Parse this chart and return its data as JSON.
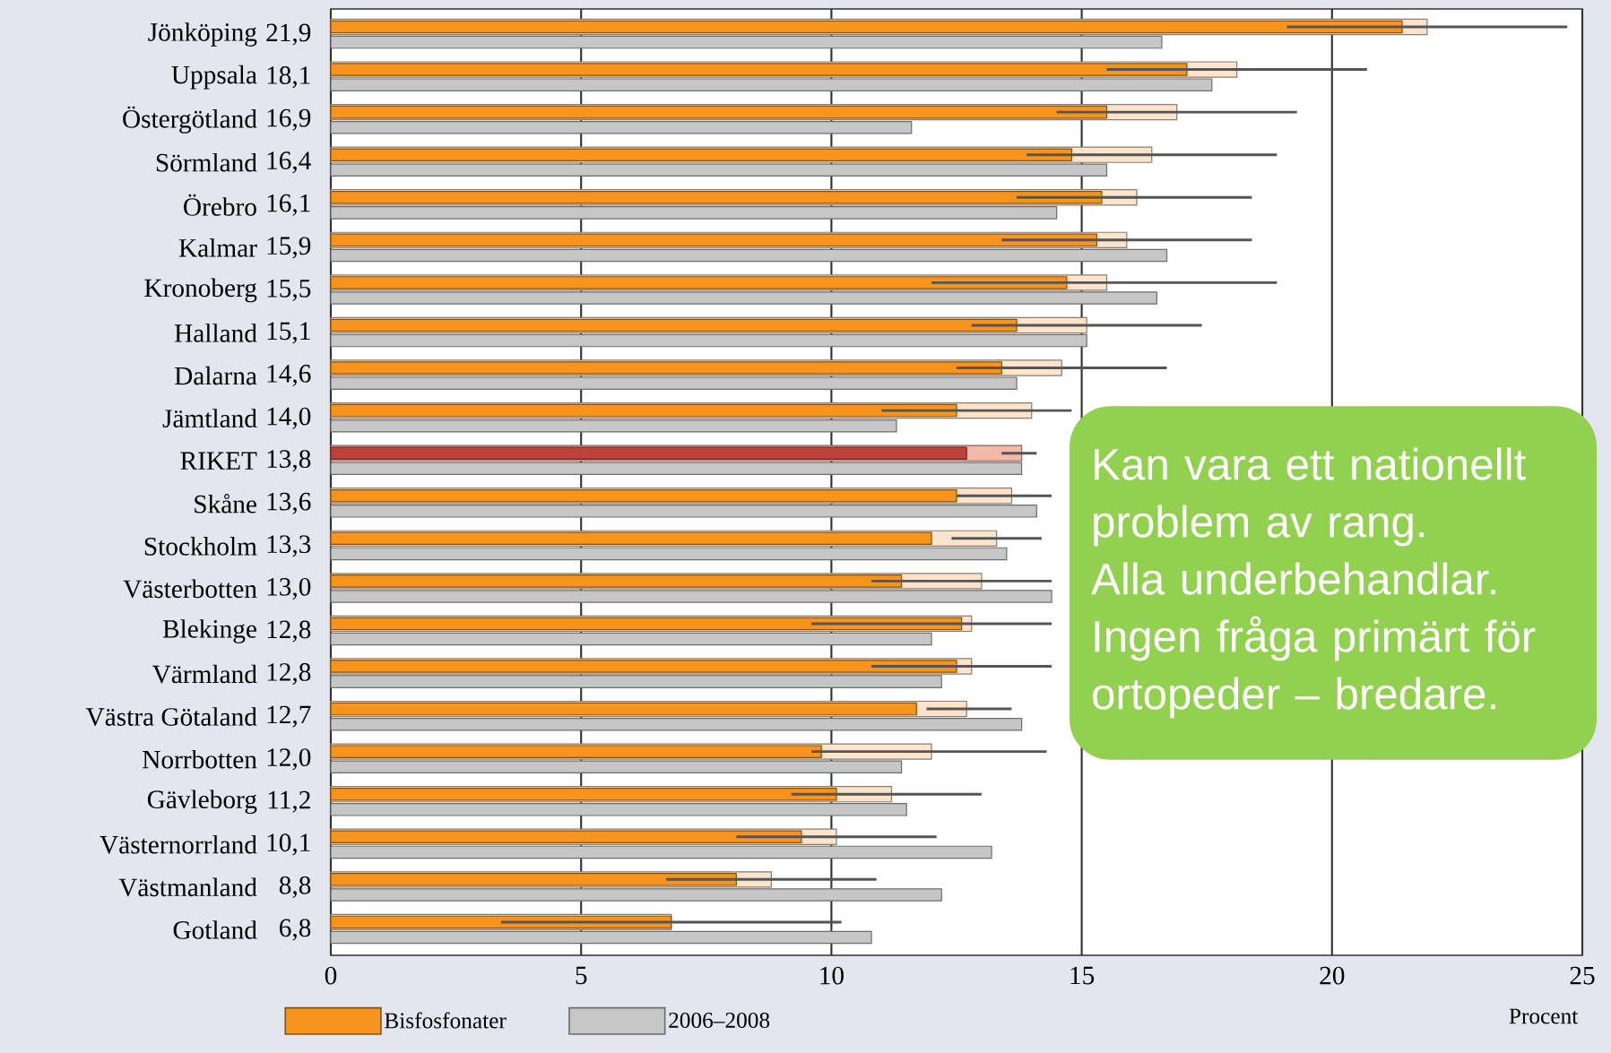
{
  "chart_data": {
    "type": "bar",
    "orientation": "horizontal",
    "categories": [
      "Jönköping",
      "Uppsala",
      "Östergötland",
      "Sörmland",
      "Örebro",
      "Kalmar",
      "Kronoberg",
      "Halland",
      "Dalarna",
      "Jämtland",
      "RIKET",
      "Skåne",
      "Stockholm",
      "Västerbotten",
      "Blekinge",
      "Värmland",
      "Västra Götaland",
      "Norrbotten",
      "Gävleborg",
      "Västernorrland",
      "Västmanland",
      "Gotland"
    ],
    "series": [
      {
        "colors": [
          "#fbe3cc",
          "#fbe3cc",
          "#fbe3cc",
          "#fbe3cc",
          "#fbe3cc",
          "#fbe3cc",
          "#fbe3cc",
          "#fbe3cc",
          "#fbe3cc",
          "#fbe3cc",
          "#f2b9a8",
          "#fbe3cc",
          "#fbe3cc",
          "#fbe3cc",
          "#fbe3cc",
          "#fbe3cc",
          "#fbe3cc",
          "#fbe3cc",
          "#fbe3cc",
          "#fbe3cc",
          "#fbe3cc",
          "#fbe3cc"
        ],
        "values": [
          21.9,
          18.1,
          16.9,
          16.4,
          16.1,
          15.9,
          15.5,
          15.1,
          14.6,
          14.0,
          13.8,
          13.6,
          13.3,
          13.0,
          12.8,
          12.8,
          12.7,
          12.0,
          11.2,
          10.1,
          8.8,
          6.8
        ],
        "value_labels": [
          "21,9",
          "18,1",
          "16,9",
          "16,4",
          "16,1",
          "15,9",
          "15,5",
          "15,1",
          "14,6",
          "14,0",
          "13,8",
          "13,6",
          "13,3",
          "13,0",
          "12,8",
          "12,8",
          "12,7",
          "12,0",
          "11,2",
          "10,1",
          "8,8",
          "6,8"
        ],
        "errors": [
          [
            19.1,
            24.7
          ],
          [
            15.5,
            20.7
          ],
          [
            14.5,
            19.3
          ],
          [
            13.9,
            18.9
          ],
          [
            13.7,
            18.4
          ],
          [
            13.4,
            18.4
          ],
          [
            12.0,
            18.9
          ],
          [
            12.8,
            17.4
          ],
          [
            12.5,
            16.7
          ],
          [
            11.0,
            14.8
          ],
          [
            13.4,
            14.1
          ],
          [
            12.5,
            14.4
          ],
          [
            12.4,
            14.2
          ],
          [
            10.8,
            14.4
          ],
          [
            9.6,
            14.4
          ],
          [
            10.8,
            14.4
          ],
          [
            11.9,
            13.6
          ],
          [
            9.6,
            14.3
          ],
          [
            9.2,
            13.0
          ],
          [
            8.1,
            12.1
          ],
          [
            6.7,
            10.9
          ],
          [
            3.4,
            10.2
          ]
        ]
      },
      {
        "name": "Bisfosfonater",
        "colors": [
          "#f7941d",
          "#f7941d",
          "#f7941d",
          "#f7941d",
          "#f7941d",
          "#f7941d",
          "#f7941d",
          "#f7941d",
          "#f7941d",
          "#f7941d",
          "#c0413a",
          "#f7941d",
          "#f7941d",
          "#f7941d",
          "#f7941d",
          "#f7941d",
          "#f7941d",
          "#f7941d",
          "#f7941d",
          "#f7941d",
          "#f7941d",
          "#f7941d"
        ],
        "values": [
          21.4,
          17.1,
          15.5,
          14.8,
          15.4,
          15.3,
          14.7,
          13.7,
          13.4,
          12.5,
          12.7,
          12.5,
          12.0,
          11.4,
          12.6,
          12.5,
          11.7,
          9.8,
          10.1,
          9.4,
          8.1,
          6.8
        ]
      },
      {
        "name": "2006–2008",
        "color": "#c6c6c6",
        "values": [
          16.6,
          17.6,
          11.6,
          15.5,
          14.5,
          16.7,
          16.5,
          15.1,
          13.7,
          11.3,
          13.8,
          14.1,
          13.5,
          14.4,
          12.0,
          12.2,
          13.8,
          11.4,
          11.5,
          13.2,
          12.2,
          10.8
        ]
      }
    ],
    "xlim": [
      0,
      25
    ],
    "xticks": [
      0,
      5,
      10,
      15,
      20,
      25
    ],
    "xlabel": "Procent",
    "grid": "x",
    "legend": "bottom",
    "annotations": [
      "Kan vara ett nationellt problem av rang. Alla underbehandlar. Ingen fråga primärt för ortopeder – bredare."
    ]
  }
}
